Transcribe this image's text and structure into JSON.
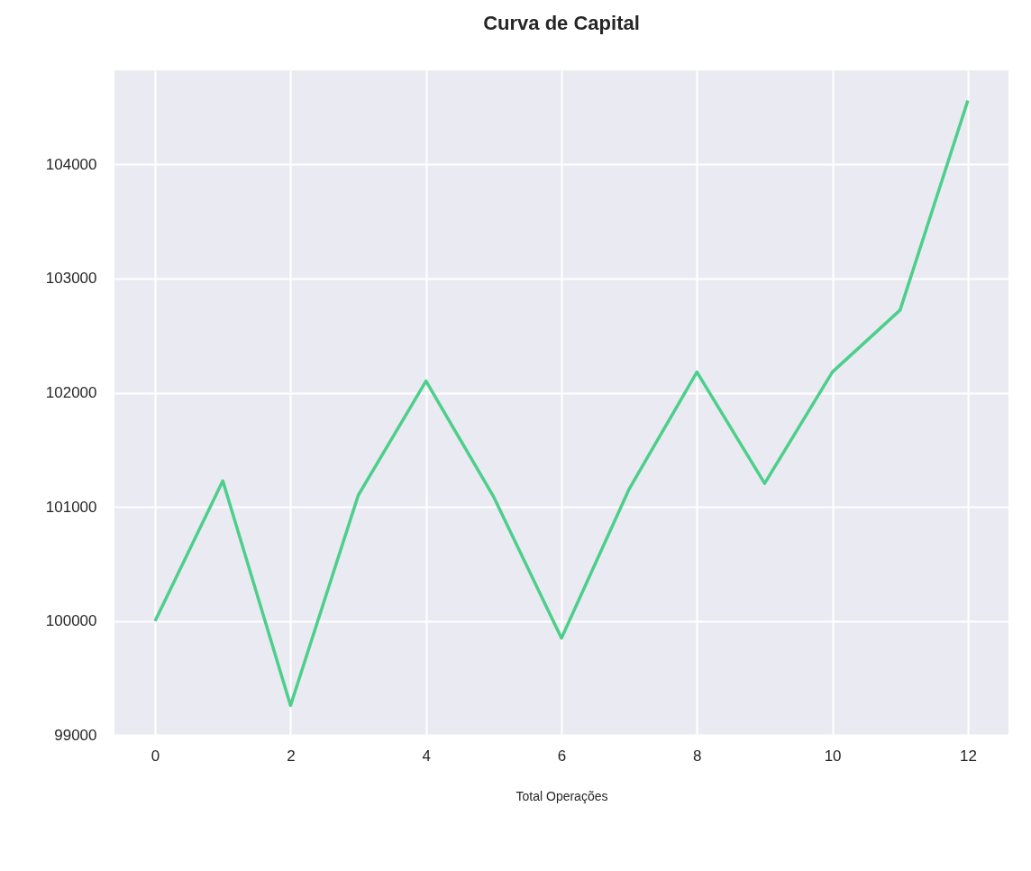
{
  "chart_data": {
    "type": "line",
    "title": "Curva de Capital",
    "xlabel": "Total Operações",
    "x": [
      0,
      1,
      2,
      3,
      4,
      5,
      6,
      7,
      8,
      9,
      10,
      11,
      12
    ],
    "series": [
      {
        "color": "#4ccf8a",
        "values": [
          100000,
          101228,
          99260,
          101102,
          102102,
          101087,
          99850,
          101157,
          102181,
          101205,
          102181,
          102724,
          104559
        ]
      }
    ],
    "xlim": [
      -0.6,
      12.6
    ],
    "xticks": [
      0,
      2,
      4,
      6,
      8,
      10,
      12
    ],
    "ylim": [
      98995,
      104824
    ],
    "yticks": [
      99000,
      100000,
      101000,
      102000,
      103000,
      104000
    ],
    "grid": true,
    "line_style": "solid",
    "marker": "none"
  }
}
